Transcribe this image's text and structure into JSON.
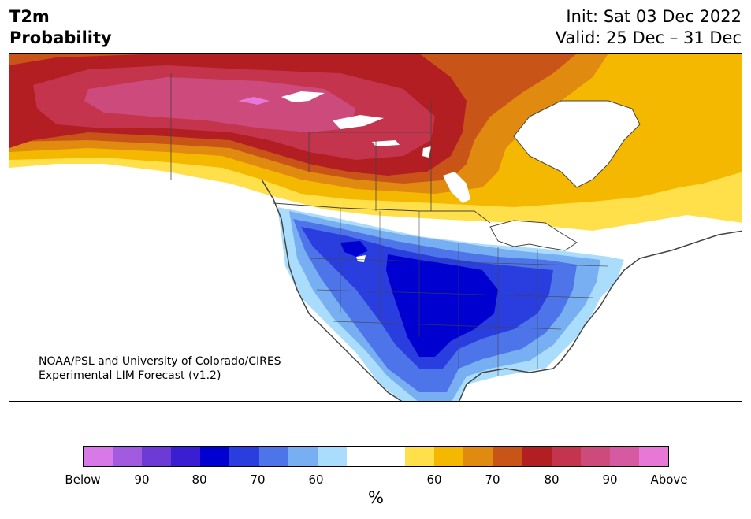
{
  "header": {
    "variable": "T2m",
    "quantity": "Probability",
    "init": "Init: Sat 03 Dec 2022",
    "valid": "Valid: 25 Dec – 31 Dec"
  },
  "credit": {
    "line1": "NOAA/PSL and University of Colorado/CIRES",
    "line2": "Experimental LIM Forecast (v1.2)"
  },
  "colorbar": {
    "colors": [
      "#d77ae8",
      "#a25ae0",
      "#6e3ad6",
      "#3a1fd2",
      "#0000d0",
      "#2a3ee0",
      "#4d74e8",
      "#78aef2",
      "#aadcfc",
      "#ffffff",
      "#ffffff",
      "#ffe04a",
      "#f4b800",
      "#e08a10",
      "#c85418",
      "#b21e22",
      "#c4344c",
      "#cc4a7c",
      "#d65aa2",
      "#e878d8"
    ],
    "labels": [
      "Below",
      "90",
      "80",
      "70",
      "60",
      "60",
      "70",
      "80",
      "90",
      "Above"
    ],
    "unit": "%"
  },
  "map": {
    "land_color": "#ffffff",
    "border_color": "#444444"
  }
}
